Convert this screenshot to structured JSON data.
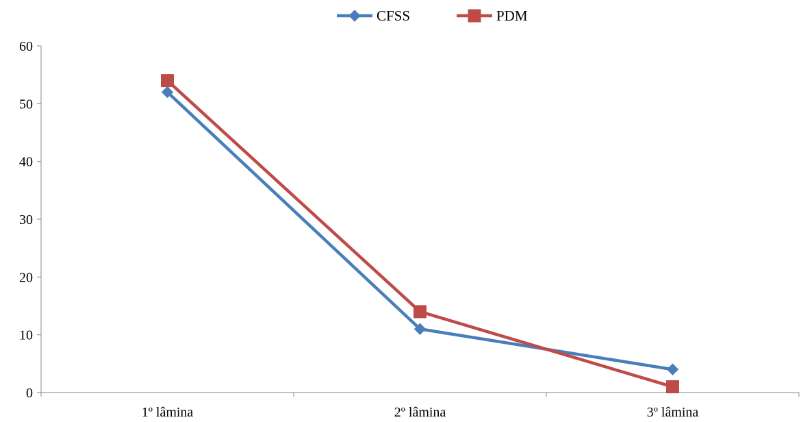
{
  "chart_data": {
    "type": "line",
    "categories": [
      "1º lâmina",
      "2º lâmina",
      "3º lâmina"
    ],
    "series": [
      {
        "name": "CFSS",
        "values": [
          52,
          11,
          4
        ],
        "color": "#4a7ebb",
        "marker": "diamond"
      },
      {
        "name": "PDM",
        "values": [
          54,
          14,
          1
        ],
        "color": "#be4b48",
        "marker": "square"
      }
    ],
    "title": "",
    "xlabel": "",
    "ylabel": "",
    "ylim": [
      0,
      60
    ],
    "yticks": [
      "0",
      "10",
      "20",
      "30",
      "40",
      "50",
      "60"
    ],
    "grid": false,
    "legend_position": "top"
  }
}
